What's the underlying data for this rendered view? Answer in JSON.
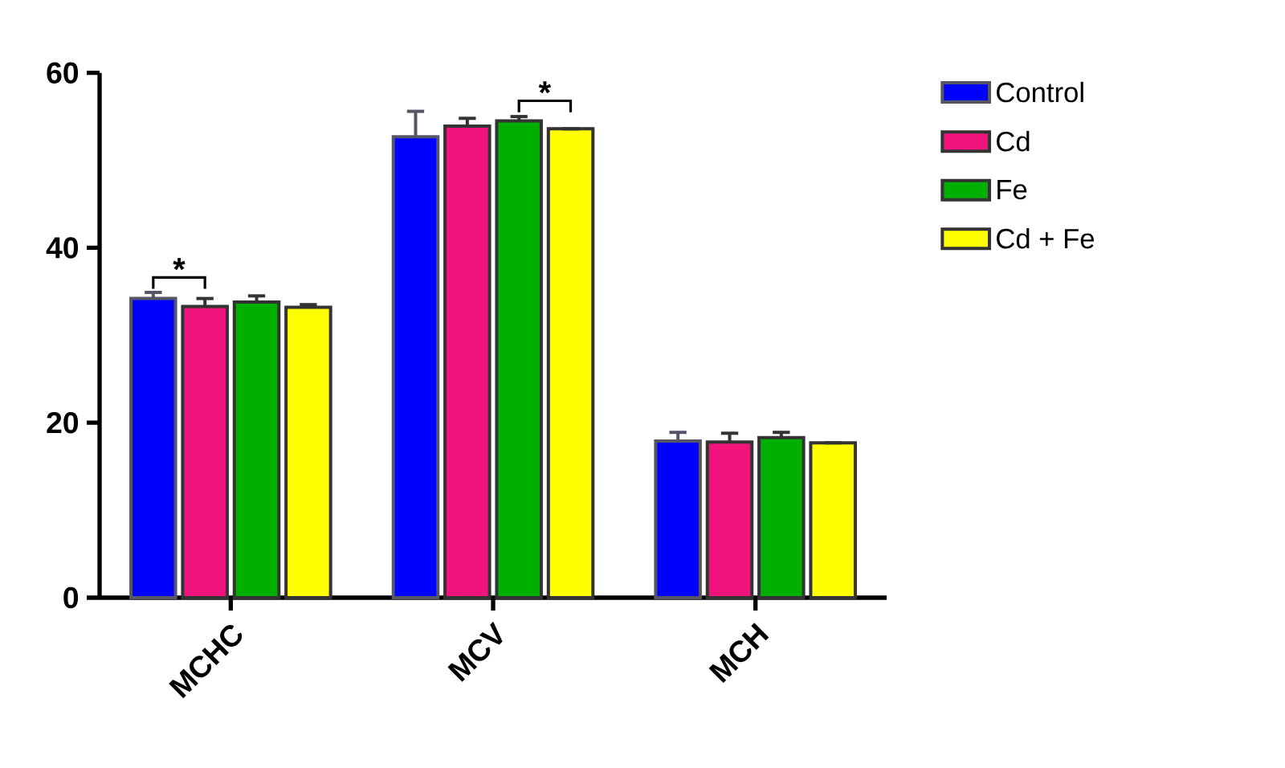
{
  "chart_data": {
    "type": "bar",
    "categories": [
      "MCHC",
      "MCV",
      "MCH"
    ],
    "series": [
      {
        "name": "Control",
        "color": "#0000ff",
        "values": [
          34.2,
          52.7,
          17.9
        ],
        "errors": [
          0.7,
          2.9,
          1.0
        ]
      },
      {
        "name": "Cd",
        "color": "#f0147c",
        "values": [
          33.3,
          53.9,
          17.8
        ],
        "errors": [
          0.9,
          0.9,
          1.0
        ]
      },
      {
        "name": "Fe",
        "color": "#00b000",
        "values": [
          33.8,
          54.5,
          18.3
        ],
        "errors": [
          0.7,
          0.5,
          0.6
        ]
      },
      {
        "name": "Cd + Fe",
        "color": "#ffff00",
        "values": [
          33.2,
          53.6,
          17.7
        ],
        "errors": [
          0.3,
          null,
          null
        ]
      }
    ],
    "ylim": [
      0,
      60
    ],
    "yticks": [
      0,
      20,
      40,
      60
    ],
    "annotations": [
      "*",
      "*"
    ],
    "grid": false,
    "legend": "right"
  }
}
